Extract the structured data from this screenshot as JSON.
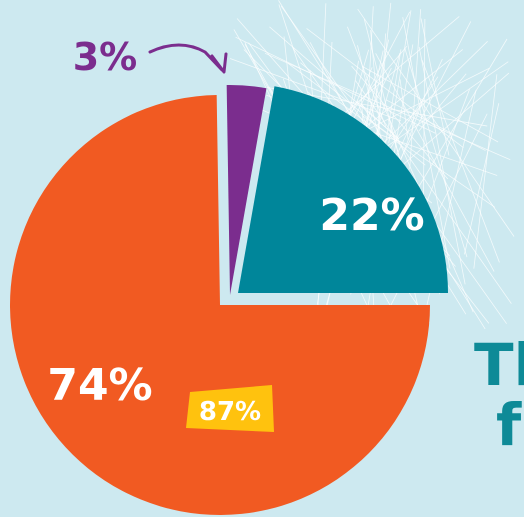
{
  "chart_data": {
    "type": "pie",
    "title": "",
    "slices": [
      {
        "label": "74%",
        "value": 74,
        "color": "#f15a22"
      },
      {
        "label": "3%",
        "value": 3,
        "color": "#7b2d8e"
      },
      {
        "label": "22%",
        "value": 22,
        "color": "#00869a"
      }
    ],
    "annotations": [
      {
        "text": "87%",
        "color": "#ffc20e"
      }
    ],
    "cropped_text": "Th\nf"
  },
  "colors": {
    "background": "#cde9f0",
    "scribble": "#ffffff",
    "annotation_text": "#ffffff",
    "cropped_text": "#0e8a97"
  }
}
